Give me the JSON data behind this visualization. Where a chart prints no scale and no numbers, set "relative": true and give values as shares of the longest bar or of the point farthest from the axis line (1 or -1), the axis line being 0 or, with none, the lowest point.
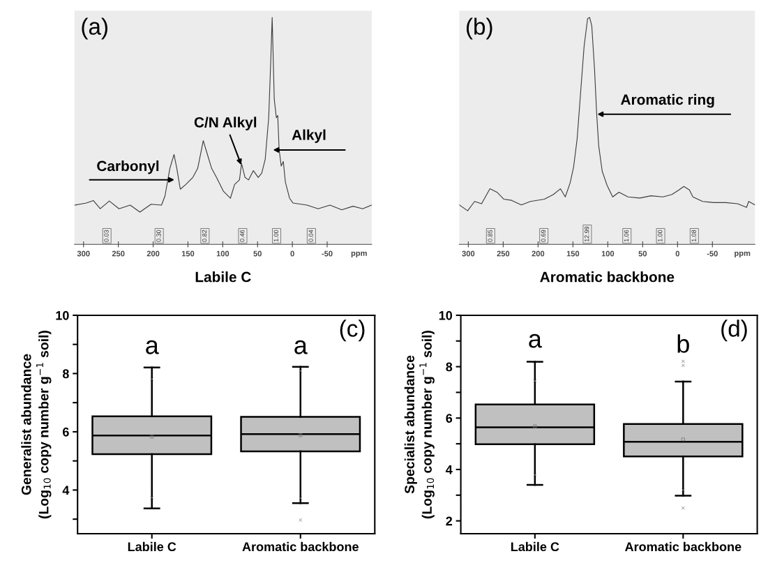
{
  "chart_data": [
    {
      "type": "line",
      "title": "(a)",
      "xlabel": "Labile C",
      "relative": true,
      "color": "#3a3a3a",
      "xlim": [
        313,
        -114
      ],
      "xticks": [
        300,
        250,
        200,
        150,
        100,
        50,
        0,
        -50
      ],
      "tick_labels": "x",
      "x": [
        313,
        296,
        286,
        276,
        263,
        249,
        233,
        219,
        203,
        188,
        183,
        176,
        170,
        166,
        161,
        153,
        143,
        136,
        128,
        123,
        116,
        109,
        99,
        89,
        83,
        76,
        73,
        68,
        63,
        56,
        49,
        44,
        39,
        34,
        31,
        29,
        26,
        23,
        21,
        19,
        16,
        13,
        10,
        4,
        -1,
        -21,
        -37,
        -54,
        -71,
        -87,
        -101,
        -114
      ],
      "values": [
        0.173,
        0.182,
        0.193,
        0.157,
        0.191,
        0.157,
        0.173,
        0.142,
        0.177,
        0.173,
        0.213,
        0.335,
        0.396,
        0.335,
        0.243,
        0.264,
        0.295,
        0.335,
        0.457,
        0.406,
        0.335,
        0.295,
        0.234,
        0.203,
        0.264,
        0.284,
        0.356,
        0.295,
        0.284,
        0.325,
        0.295,
        0.314,
        0.375,
        0.558,
        0.812,
        1.0,
        0.64,
        0.558,
        0.568,
        0.417,
        0.345,
        0.365,
        0.274,
        0.203,
        0.182,
        0.173,
        0.157,
        0.173,
        0.152,
        0.168,
        0.157,
        0.173
      ],
      "annotations": [
        "Carbonyl",
        "C/N Alkyl",
        "Alkyl",
        "0.03",
        "0.30",
        "0.82",
        "0.46",
        "1.00",
        "0.04",
        "ppm"
      ]
    },
    {
      "type": "line",
      "title": "(b)",
      "xlabel": "Aromatic backbone",
      "relative": true,
      "color": "#3a3a3a",
      "xlim": [
        313,
        -111
      ],
      "xticks": [
        300,
        250,
        200,
        150,
        100,
        50,
        0,
        -50
      ],
      "tick_labels": "x",
      "x": [
        313,
        301,
        291,
        281,
        269,
        259,
        249,
        238,
        224,
        211,
        191,
        178,
        168,
        161,
        154,
        149,
        144,
        139,
        134,
        129,
        126,
        123,
        119,
        116,
        113,
        108,
        101,
        93,
        84,
        71,
        54,
        38,
        21,
        8,
        -2,
        -9,
        -17,
        -22,
        -36,
        -52,
        -69,
        -86,
        -99,
        -102,
        -111
      ],
      "values": [
        0.174,
        0.148,
        0.189,
        0.179,
        0.245,
        0.23,
        0.199,
        0.194,
        0.174,
        0.189,
        0.199,
        0.22,
        0.245,
        0.209,
        0.271,
        0.342,
        0.464,
        0.669,
        0.872,
        0.995,
        1.0,
        0.964,
        0.771,
        0.577,
        0.433,
        0.322,
        0.26,
        0.209,
        0.23,
        0.209,
        0.204,
        0.214,
        0.209,
        0.22,
        0.24,
        0.255,
        0.24,
        0.209,
        0.189,
        0.184,
        0.184,
        0.179,
        0.163,
        0.189,
        0.174
      ],
      "annotations": [
        "Aromatic ring",
        "0.85",
        "0.69",
        "12.99",
        "1.06",
        "1.00",
        "1.08",
        "ppm"
      ]
    },
    {
      "type": "box",
      "ylabel": "Generalist abundance\n(Log$_{10}$ copy number g$^{−1}$ soil)",
      "categories": [
        "Labile C",
        "Aromatic backbone"
      ],
      "color": "#c0c0c0",
      "ylim": [
        2.5,
        10
      ],
      "yticks": [
        {
          "value": 3,
          "label": null
        },
        4,
        {
          "value": 5,
          "label": null
        },
        6,
        {
          "value": 7,
          "label": null
        },
        8,
        {
          "value": 9,
          "label": null
        },
        10
      ],
      "boxes": [
        {
          "low": 3.37,
          "q1": 5.23,
          "median": 5.87,
          "q3": 6.53,
          "high": 8.21,
          "mean": 5.83,
          "outliers": [
            7.81,
            3.74
          ]
        },
        {
          "low": 3.55,
          "q1": 5.33,
          "median": 5.92,
          "q3": 6.51,
          "high": 8.23,
          "mean": 5.88,
          "outliers": [
            8.09,
            3.72,
            2.97
          ]
        }
      ],
      "annotations": [
        "a",
        "a",
        "(c)"
      ]
    },
    {
      "type": "box",
      "ylabel": "Specialist abundance\n(Log$_{10}$ copy number g$^{−1}$ soil)",
      "categories": [
        "Labile C",
        "Aromatic backbone"
      ],
      "color": "#c0c0c0",
      "ylim": [
        1.5,
        10
      ],
      "yticks": [
        2,
        {
          "value": 3,
          "label": null
        },
        4,
        {
          "value": 5,
          "label": null
        },
        6,
        {
          "value": 7,
          "label": null
        },
        8,
        {
          "value": 9,
          "label": null
        },
        10
      ],
      "boxes": [
        {
          "low": 3.4,
          "q1": 4.98,
          "median": 5.64,
          "q3": 6.53,
          "high": 8.19,
          "mean": 5.68,
          "outliers": [
            7.44,
            3.79
          ]
        },
        {
          "low": 2.98,
          "q1": 4.51,
          "median": 5.08,
          "q3": 5.77,
          "high": 7.42,
          "mean": 5.17,
          "outliers": [
            8.21,
            8.05,
            3.2,
            2.5
          ]
        }
      ],
      "annotations": [
        "a",
        "b",
        "(d)"
      ]
    }
  ]
}
